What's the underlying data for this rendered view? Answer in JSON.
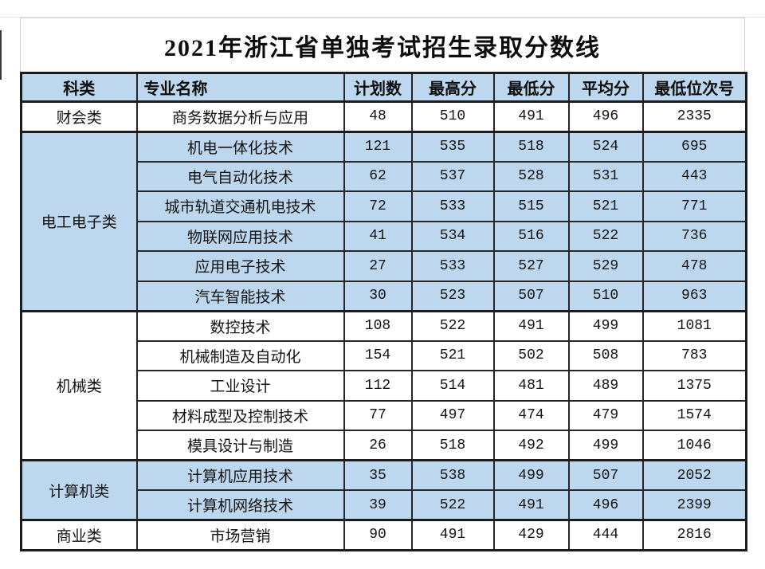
{
  "page": {
    "title": "2021年浙江省单独考试招生录取分数线"
  },
  "colors": {
    "shaded_row_blue": "#bdd7ee",
    "unshaded_row": "#ffffff",
    "table_border": "#1c1c1c",
    "title_border": "#cdd0da",
    "text": "#141414"
  },
  "table": {
    "columns": [
      "科类",
      "专业名称",
      "计划数",
      "最高分",
      "最低分",
      "平均分",
      "最低位次号"
    ],
    "groups": [
      {
        "category": "财会类",
        "shaded": false,
        "rows": [
          {
            "major": "商务数据分析与应用",
            "plan": "48",
            "max": "510",
            "min": "491",
            "avg": "496",
            "rank": "2335"
          }
        ]
      },
      {
        "category": "电工电子类",
        "shaded": true,
        "rows": [
          {
            "major": "机电一体化技术",
            "plan": "121",
            "max": "535",
            "min": "518",
            "avg": "524",
            "rank": "695"
          },
          {
            "major": "电气自动化技术",
            "plan": "62",
            "max": "537",
            "min": "528",
            "avg": "531",
            "rank": "443"
          },
          {
            "major": "城市轨道交通机电技术",
            "plan": "72",
            "max": "533",
            "min": "515",
            "avg": "521",
            "rank": "771"
          },
          {
            "major": "物联网应用技术",
            "plan": "41",
            "max": "534",
            "min": "516",
            "avg": "522",
            "rank": "736"
          },
          {
            "major": "应用电子技术",
            "plan": "27",
            "max": "533",
            "min": "527",
            "avg": "529",
            "rank": "478"
          },
          {
            "major": "汽车智能技术",
            "plan": "30",
            "max": "523",
            "min": "507",
            "avg": "510",
            "rank": "963"
          }
        ]
      },
      {
        "category": "机械类",
        "shaded": false,
        "rows": [
          {
            "major": "数控技术",
            "plan": "108",
            "max": "522",
            "min": "491",
            "avg": "499",
            "rank": "1081"
          },
          {
            "major": "机械制造及自动化",
            "plan": "154",
            "max": "521",
            "min": "502",
            "avg": "508",
            "rank": "783"
          },
          {
            "major": "工业设计",
            "plan": "112",
            "max": "514",
            "min": "481",
            "avg": "489",
            "rank": "1375"
          },
          {
            "major": "材料成型及控制技术",
            "plan": "77",
            "max": "497",
            "min": "474",
            "avg": "479",
            "rank": "1574"
          },
          {
            "major": "模具设计与制造",
            "plan": "26",
            "max": "518",
            "min": "492",
            "avg": "499",
            "rank": "1046"
          }
        ]
      },
      {
        "category": "计算机类",
        "shaded": true,
        "rows": [
          {
            "major": "计算机应用技术",
            "plan": "35",
            "max": "538",
            "min": "499",
            "avg": "507",
            "rank": "2052"
          },
          {
            "major": "计算机网络技术",
            "plan": "39",
            "max": "522",
            "min": "491",
            "avg": "496",
            "rank": "2399"
          }
        ]
      },
      {
        "category": "商业类",
        "shaded": false,
        "rows": [
          {
            "major": "市场营销",
            "plan": "90",
            "max": "491",
            "min": "429",
            "avg": "444",
            "rank": "2816"
          }
        ]
      }
    ]
  }
}
